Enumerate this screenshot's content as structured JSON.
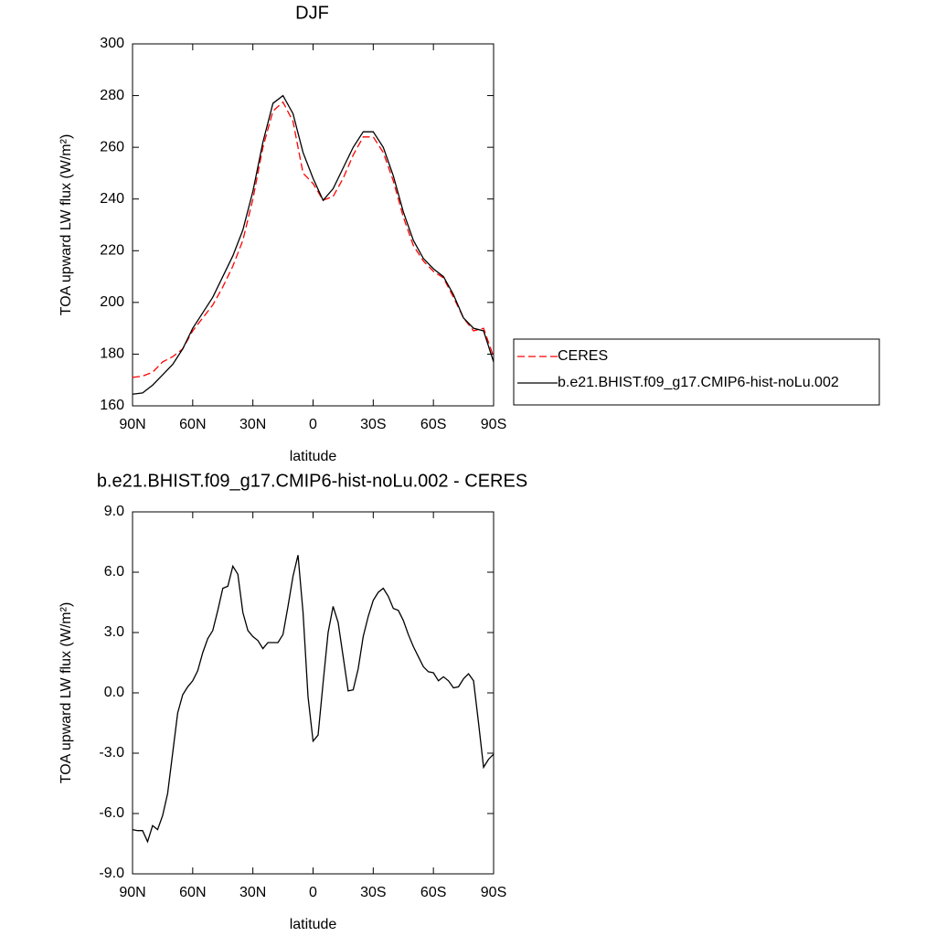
{
  "chart_data": [
    {
      "type": "line",
      "title": "DJF",
      "x_label": "latitude",
      "y_label": "TOA upward LW flux (W/m²)",
      "x": [
        90,
        85,
        80,
        75,
        70,
        65,
        60,
        55,
        50,
        45,
        40,
        35,
        30,
        25,
        20,
        15,
        10,
        5,
        0,
        -5,
        -10,
        -15,
        -20,
        -25,
        -30,
        -35,
        -40,
        -45,
        -50,
        -55,
        -60,
        -65,
        -70,
        -75,
        -80,
        -85,
        -90
      ],
      "series": [
        {
          "name": "CERES",
          "color": "#ff0000",
          "dash": "dashed",
          "values": [
            171,
            171.5,
            173,
            177,
            179,
            182,
            189,
            194,
            199,
            206,
            214,
            224,
            240,
            260,
            274,
            277.5,
            270,
            250,
            246,
            239.5,
            241,
            248,
            257,
            264,
            264,
            258,
            247,
            233,
            222,
            216,
            212,
            209.5,
            202,
            194,
            189,
            190,
            179
          ]
        },
        {
          "name": "b.e21.BHIST.f09_g17.CMIP6-hist-noLu.002",
          "color": "#000000",
          "dash": "solid",
          "values": [
            164.5,
            165,
            168,
            172,
            176,
            182,
            190,
            196,
            202,
            210,
            218,
            228,
            243,
            262,
            277,
            280,
            273,
            258,
            248,
            239.5,
            244,
            252,
            260,
            266,
            266,
            260,
            249,
            235,
            224,
            217,
            213,
            210,
            203,
            194,
            190,
            189,
            177
          ]
        }
      ],
      "xlim": [
        90,
        -90
      ],
      "xticks": [
        {
          "value": 90,
          "label": "90N"
        },
        {
          "value": 60,
          "label": "60N"
        },
        {
          "value": 30,
          "label": "30N"
        },
        0,
        {
          "value": -30,
          "label": "30S"
        },
        {
          "value": -60,
          "label": "60S"
        },
        {
          "value": -90,
          "label": "90S"
        }
      ],
      "ylim": [
        160,
        300
      ],
      "yticks": [
        160,
        180,
        200,
        220,
        240,
        260,
        280,
        300
      ],
      "legend": "right"
    },
    {
      "type": "line",
      "title": "b.e21.BHIST.f09_g17.CMIP6-hist-noLu.002 - CERES",
      "x_label": "latitude",
      "y_label": "TOA upward LW flux (W/m²)",
      "x": [
        90,
        87.5,
        85,
        82.5,
        80,
        77.5,
        75,
        72.5,
        70,
        67.5,
        65,
        62.5,
        60,
        57.5,
        55,
        52.5,
        50,
        47.5,
        45,
        42.5,
        40,
        37.5,
        35,
        32.5,
        30,
        27.5,
        25,
        22.5,
        20,
        17.5,
        15,
        12.5,
        10,
        7.5,
        5,
        2.5,
        0,
        -2.5,
        -5,
        -7.5,
        -10,
        -12.5,
        -15,
        -17.5,
        -20,
        -22.5,
        -25,
        -27.5,
        -30,
        -32.5,
        -35,
        -37.5,
        -40,
        -42.5,
        -45,
        -47.5,
        -50,
        -52.5,
        -55,
        -57.5,
        -60,
        -62.5,
        -65,
        -67.5,
        -70,
        -72.5,
        -75,
        -77.5,
        -80,
        -82.5,
        -85,
        -87.5,
        -90
      ],
      "color": "#000000",
      "values": [
        -6.8,
        -6.85,
        -6.85,
        -7.4,
        -6.6,
        -6.8,
        -6.1,
        -5,
        -3,
        -1,
        -0.1,
        0.3,
        0.6,
        1.1,
        2.0,
        2.7,
        3.1,
        4.1,
        5.2,
        5.3,
        6.3,
        5.9,
        4.0,
        3.1,
        2.8,
        2.6,
        2.2,
        2.5,
        2.5,
        2.5,
        2.9,
        4.3,
        5.8,
        6.85,
        4.0,
        -0.2,
        -2.4,
        -2.1,
        0.5,
        3.0,
        4.3,
        3.5,
        1.8,
        0.1,
        0.15,
        1.2,
        2.8,
        3.8,
        4.6,
        5.0,
        5.2,
        4.8,
        4.2,
        4.1,
        3.6,
        2.9,
        2.3,
        1.8,
        1.3,
        1.05,
        1.0,
        0.6,
        0.8,
        0.6,
        0.25,
        0.3,
        0.7,
        0.95,
        0.6,
        -1.5,
        -3.7,
        -3.3,
        -3.05
      ],
      "xlim": [
        90,
        -90
      ],
      "xticks": [
        {
          "value": 90,
          "label": "90N"
        },
        {
          "value": 60,
          "label": "60N"
        },
        {
          "value": 30,
          "label": "30N"
        },
        0,
        {
          "value": -30,
          "label": "30S"
        },
        {
          "value": -60,
          "label": "60S"
        },
        {
          "value": -90,
          "label": "90S"
        }
      ],
      "ylim": [
        -9,
        9
      ],
      "yticks": [
        {
          "value": -9,
          "label": "-9.0"
        },
        {
          "value": -6,
          "label": "-6.0"
        },
        {
          "value": -3,
          "label": "-3.0"
        },
        {
          "value": 0,
          "label": "0.0"
        },
        {
          "value": 3,
          "label": "3.0"
        },
        {
          "value": 6,
          "label": "6.0"
        },
        {
          "value": 9,
          "label": "9.0"
        }
      ]
    }
  ]
}
